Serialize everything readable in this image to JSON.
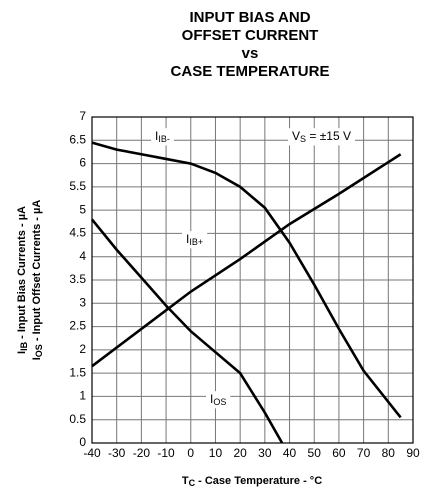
{
  "chart_data": {
    "type": "line",
    "title": [
      "INPUT BIAS AND",
      "OFFSET CURRENT",
      "vs",
      "CASE TEMPERATURE"
    ],
    "xlabel": {
      "main": "T",
      "sub": "C",
      "rest": " - Case Temperature - °C"
    },
    "ylabel": [
      {
        "main": "I",
        "sub": "IB",
        "rest": " - Input Bias Currents -  µA"
      },
      {
        "main": "I",
        "sub": "OS",
        "rest": " - Input Offset Currents -  µA"
      }
    ],
    "annotation": {
      "main": "V",
      "sub": "S",
      "rest": " = ±15 V"
    },
    "xlim": [
      -40,
      90
    ],
    "xticks": [
      -40,
      -30,
      -20,
      -10,
      0,
      10,
      20,
      30,
      40,
      50,
      60,
      70,
      80,
      90
    ],
    "ylim": [
      0,
      7
    ],
    "yticks": [
      0,
      0.5,
      1,
      1.5,
      2,
      2.5,
      3,
      3.5,
      4,
      4.5,
      5,
      5.5,
      6,
      6.5,
      7
    ],
    "grid": true,
    "series": [
      {
        "label": {
          "main": "I",
          "sub": "IB-"
        },
        "color": "#000000",
        "x": [
          -40,
          -30,
          -20,
          -10,
          0,
          10,
          20,
          30,
          40,
          50,
          60,
          70,
          85
        ],
        "y": [
          6.45,
          6.3,
          6.2,
          6.1,
          6.0,
          5.8,
          5.5,
          5.05,
          4.3,
          3.4,
          2.45,
          1.55,
          0.55
        ]
      },
      {
        "label": {
          "main": "I",
          "sub": "IB+"
        },
        "color": "#000000",
        "x": [
          -40,
          -20,
          0,
          20,
          40,
          60,
          85
        ],
        "y": [
          1.65,
          2.45,
          3.25,
          3.95,
          4.7,
          5.35,
          6.2
        ]
      },
      {
        "label": {
          "main": "I",
          "sub": "OS"
        },
        "color": "#000000",
        "x": [
          -40,
          -30,
          -20,
          -10,
          0,
          10,
          20,
          30,
          37
        ],
        "y": [
          4.8,
          4.15,
          3.55,
          2.95,
          2.4,
          1.95,
          1.5,
          0.65,
          0
        ]
      }
    ]
  }
}
